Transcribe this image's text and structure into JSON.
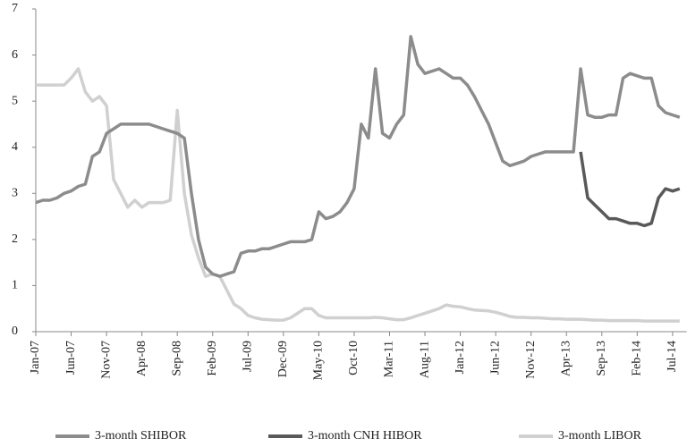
{
  "chart_data": {
    "type": "line",
    "x": [
      0,
      1,
      2,
      3,
      4,
      5,
      6,
      7,
      8,
      9,
      10,
      11,
      12,
      13,
      14,
      15,
      16,
      17,
      18,
      19,
      20,
      21,
      22,
      23,
      24,
      25,
      26,
      27,
      28,
      29,
      30,
      31,
      32,
      33,
      34,
      35,
      36,
      37,
      38,
      39,
      40,
      41,
      42,
      43,
      44,
      45,
      46,
      47,
      48,
      49,
      50,
      51,
      52,
      53,
      54,
      55,
      56,
      57,
      58,
      59,
      60,
      61,
      62,
      63,
      64,
      65,
      66,
      67,
      68,
      69,
      70,
      71,
      72,
      73,
      74,
      75,
      76,
      77,
      78,
      79,
      80,
      81,
      82,
      83,
      84,
      85,
      86,
      87,
      88,
      89,
      90,
      91
    ],
    "xlim": [
      0,
      92
    ],
    "xticks": [
      {
        "value": 0,
        "label": "Jan-07"
      },
      {
        "value": 5,
        "label": "Jun-07"
      },
      {
        "value": 10,
        "label": "Nov-07"
      },
      {
        "value": 15,
        "label": "Apr-08"
      },
      {
        "value": 20,
        "label": "Sep-08"
      },
      {
        "value": 25,
        "label": "Feb-09"
      },
      {
        "value": 30,
        "label": "Jul-09"
      },
      {
        "value": 35,
        "label": "Dec-09"
      },
      {
        "value": 40,
        "label": "May-10"
      },
      {
        "value": 45,
        "label": "Oct-10"
      },
      {
        "value": 50,
        "label": "Mar-11"
      },
      {
        "value": 55,
        "label": "Aug-11"
      },
      {
        "value": 60,
        "label": "Jan-12"
      },
      {
        "value": 65,
        "label": "Jun-12"
      },
      {
        "value": 70,
        "label": "Nov-12"
      },
      {
        "value": 75,
        "label": "Apr-13"
      },
      {
        "value": 80,
        "label": "Sep-13"
      },
      {
        "value": 85,
        "label": "Feb-14"
      },
      {
        "value": 90,
        "label": "Jul-14"
      }
    ],
    "ylim": [
      0,
      7
    ],
    "yticks": [
      0,
      1,
      2,
      3,
      4,
      5,
      6,
      7
    ],
    "grid": false,
    "legend": "bottom",
    "series": [
      {
        "name": "3-month SHIBOR",
        "color": "#8c8c8c",
        "values": [
          2.8,
          2.85,
          2.85,
          2.9,
          3.0,
          3.05,
          3.15,
          3.2,
          3.8,
          3.9,
          4.3,
          4.4,
          4.5,
          4.5,
          4.5,
          4.5,
          4.5,
          4.45,
          4.4,
          4.35,
          4.3,
          4.2,
          3.0,
          2.0,
          1.4,
          1.25,
          1.2,
          1.25,
          1.3,
          1.7,
          1.75,
          1.75,
          1.8,
          1.8,
          1.85,
          1.9,
          1.95,
          1.95,
          1.95,
          2.0,
          2.6,
          2.45,
          2.5,
          2.6,
          2.8,
          3.1,
          4.5,
          4.2,
          5.7,
          4.3,
          4.2,
          4.5,
          4.7,
          6.4,
          5.8,
          5.6,
          5.65,
          5.7,
          5.6,
          5.5,
          5.5,
          5.35,
          5.1,
          4.8,
          4.5,
          4.1,
          3.7,
          3.6,
          3.65,
          3.7,
          3.8,
          3.85,
          3.9,
          3.9,
          3.9,
          3.9,
          3.9,
          5.7,
          4.7,
          4.65,
          4.65,
          4.7,
          4.7,
          5.5,
          5.6,
          5.55,
          5.5,
          5.5,
          4.9,
          4.75,
          4.7,
          4.65
        ]
      },
      {
        "name": "3-month CNH HIBOR",
        "color": "#595959",
        "values": [
          null,
          null,
          null,
          null,
          null,
          null,
          null,
          null,
          null,
          null,
          null,
          null,
          null,
          null,
          null,
          null,
          null,
          null,
          null,
          null,
          null,
          null,
          null,
          null,
          null,
          null,
          null,
          null,
          null,
          null,
          null,
          null,
          null,
          null,
          null,
          null,
          null,
          null,
          null,
          null,
          null,
          null,
          null,
          null,
          null,
          null,
          null,
          null,
          null,
          null,
          null,
          null,
          null,
          null,
          null,
          null,
          null,
          null,
          null,
          null,
          null,
          null,
          null,
          null,
          null,
          null,
          null,
          null,
          null,
          null,
          null,
          null,
          null,
          null,
          null,
          null,
          null,
          3.9,
          2.9,
          2.75,
          2.6,
          2.45,
          2.45,
          2.4,
          2.35,
          2.35,
          2.3,
          2.35,
          2.9,
          3.1,
          3.05,
          3.1
        ]
      },
      {
        "name": "3-month LIBOR",
        "color": "#d0d0d0",
        "values": [
          5.35,
          5.35,
          5.35,
          5.35,
          5.35,
          5.5,
          5.7,
          5.2,
          5.0,
          5.1,
          4.9,
          3.3,
          3.0,
          2.7,
          2.85,
          2.7,
          2.8,
          2.8,
          2.8,
          2.85,
          4.8,
          3.0,
          2.1,
          1.6,
          1.2,
          1.25,
          1.2,
          0.9,
          0.6,
          0.5,
          0.35,
          0.3,
          0.27,
          0.26,
          0.25,
          0.25,
          0.3,
          0.4,
          0.5,
          0.5,
          0.35,
          0.3,
          0.3,
          0.3,
          0.3,
          0.3,
          0.3,
          0.3,
          0.31,
          0.3,
          0.28,
          0.26,
          0.26,
          0.3,
          0.35,
          0.4,
          0.45,
          0.5,
          0.58,
          0.55,
          0.54,
          0.5,
          0.47,
          0.46,
          0.45,
          0.42,
          0.38,
          0.33,
          0.31,
          0.31,
          0.3,
          0.3,
          0.29,
          0.28,
          0.28,
          0.27,
          0.27,
          0.27,
          0.26,
          0.25,
          0.25,
          0.24,
          0.24,
          0.24,
          0.24,
          0.24,
          0.23,
          0.23,
          0.23,
          0.23,
          0.23,
          0.23
        ]
      }
    ]
  }
}
